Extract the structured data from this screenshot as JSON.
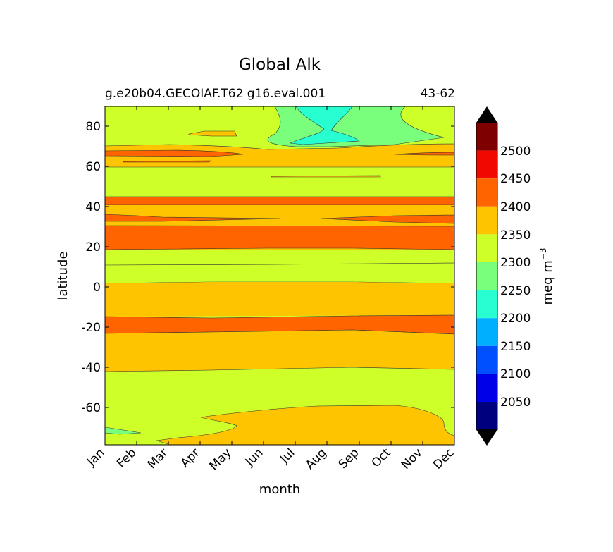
{
  "chart_data": {
    "type": "contour",
    "title": "Global Alk",
    "subtitle_left": "g.e20b04.GECOIAF.T62 g16.eval.001",
    "subtitle_right": "43-62",
    "xlabel": "month",
    "ylabel": "latitude",
    "x_ticks": [
      "Jan",
      "Feb",
      "Mar",
      "Apr",
      "May",
      "Jun",
      "Jul",
      "Aug",
      "Sep",
      "Oct",
      "Nov",
      "Dec"
    ],
    "y_ticks": [
      80,
      60,
      40,
      20,
      0,
      -20,
      -40,
      -60
    ],
    "ylim": [
      -78,
      90
    ],
    "grid": false,
    "colorbar": {
      "label": "meq m",
      "label_superscript": "−3",
      "tick_labels": [
        "2050",
        "2100",
        "2150",
        "2200",
        "2250",
        "2300",
        "2350",
        "2400",
        "2450",
        "2500"
      ],
      "levels": [
        2000,
        2050,
        2100,
        2150,
        2200,
        2250,
        2300,
        2350,
        2400,
        2450,
        2500,
        2550
      ],
      "colors": [
        "#00007f",
        "#0000e8",
        "#0050ff",
        "#00b0ff",
        "#27ffd0",
        "#7aff7d",
        "#ceff29",
        "#ffc400",
        "#ff6400",
        "#f10800",
        "#7f0000"
      ],
      "extend_min_color": "#000000",
      "extend_max_color": "#000000"
    },
    "bands": [
      {
        "lat_from": 90,
        "lat_to": 84,
        "level_range": "2300-2350"
      },
      {
        "lat_from": 84,
        "lat_to": 70,
        "level_range": "2300-2350",
        "feature": "2200-2250 / 2250-2300 region Jun-Oct"
      },
      {
        "lat_from": 70,
        "lat_to": 67,
        "level_range": "2350-2400"
      },
      {
        "lat_from": 67,
        "lat_to": 65,
        "level_range": "2400-2450"
      },
      {
        "lat_from": 65,
        "lat_to": 59,
        "level_range": "2350-2400"
      },
      {
        "lat_from": 59,
        "lat_to": 45,
        "level_range": "2300-2350"
      },
      {
        "lat_from": 45,
        "lat_to": 40,
        "level_range": "2400-2450"
      },
      {
        "lat_from": 40,
        "lat_to": 36,
        "level_range": "2350-2400"
      },
      {
        "lat_from": 36,
        "lat_to": 33,
        "level_range": "2400-2450"
      },
      {
        "lat_from": 33,
        "lat_to": 30,
        "level_range": "2350-2400"
      },
      {
        "lat_from": 30,
        "lat_to": 19,
        "level_range": "2400-2450"
      },
      {
        "lat_from": 19,
        "lat_to": 10,
        "level_range": "2350-2400"
      },
      {
        "lat_from": 10,
        "lat_to": 1,
        "level_range": "2300-2350"
      },
      {
        "lat_from": 1,
        "lat_to": -16,
        "level_range": "2350-2400"
      },
      {
        "lat_from": -16,
        "lat_to": -24,
        "level_range": "2400-2450"
      },
      {
        "lat_from": -24,
        "lat_to": -42,
        "level_range": "2350-2400"
      },
      {
        "lat_from": -42,
        "lat_to": -62,
        "level_range": "2300-2350"
      },
      {
        "lat_from": -62,
        "lat_to": -78,
        "level_range": "2350-2400",
        "feature": "2300-2350 near Jan/Dec"
      }
    ]
  }
}
